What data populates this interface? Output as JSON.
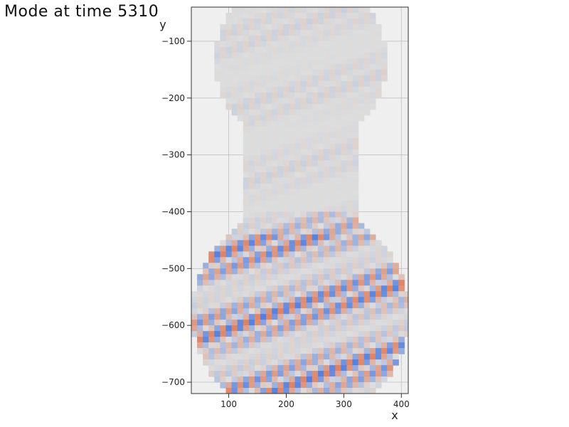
{
  "title": "Mode at time 5310",
  "chart_data": {
    "type": "heatmap",
    "title": "Mode at time 5310",
    "xlabel": "x",
    "ylabel": "y",
    "xlim": [
      35,
      412
    ],
    "ylim": [
      -720,
      -40
    ],
    "x_ticks": [
      100,
      200,
      300,
      400
    ],
    "y_ticks": [
      -100,
      -200,
      -300,
      -400,
      -500,
      -600,
      -700
    ],
    "x_tick_labels": [
      "100",
      "200",
      "300",
      "400"
    ],
    "y_tick_labels": [
      "−100",
      "−200",
      "−300",
      "−400",
      "−500",
      "−600",
      "−700"
    ],
    "grid": true,
    "colormap": [
      "#3b6ee0",
      "#dddddd",
      "#e0704c"
    ],
    "background_color": "#efefef",
    "domain": {
      "upper_circle": {
        "cx": 225,
        "cy": -135,
        "r": 150
      },
      "neck": {
        "x_min": 125,
        "x_max": 323,
        "y_min": -420,
        "y_max": -250
      },
      "lower_circle": {
        "cx": 225,
        "cy": -580,
        "r": 190
      }
    },
    "field_note": "oscillating mode pattern, weak amplitude in upper region, strong in lower region"
  }
}
